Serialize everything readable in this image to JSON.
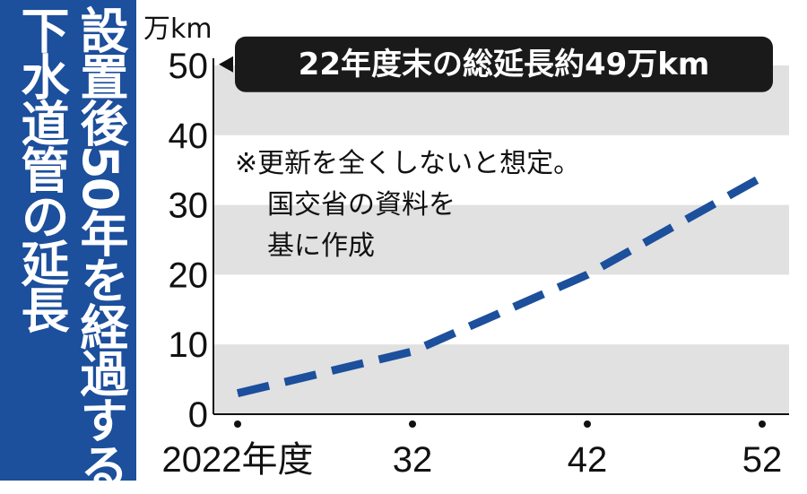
{
  "title": "設置後50年を経過する\n下水道管の延長",
  "chart_data": {
    "type": "line",
    "title": "設置後50年を経過する下水道管の延長",
    "y_unit_label": "万km",
    "x_tick_labels": [
      "2022年度",
      "32",
      "42",
      "52"
    ],
    "x": [
      2022,
      2032,
      2042,
      2052
    ],
    "y_ticks": [
      0,
      10,
      20,
      30,
      40,
      50
    ],
    "ylim": [
      0,
      50
    ],
    "series": [
      {
        "values": [
          3,
          9,
          20,
          34
        ],
        "style": "dashed",
        "color": "#1c4f9c"
      }
    ],
    "annotations": {
      "callout": "22年度末の総延長約49万km",
      "callout_value": 49,
      "note_lines": [
        "※更新を全くしないと想定。",
        "国交省の資料を",
        "基に作成"
      ]
    },
    "grid": "alternating-bands",
    "band_color": "#e1e1e1"
  }
}
